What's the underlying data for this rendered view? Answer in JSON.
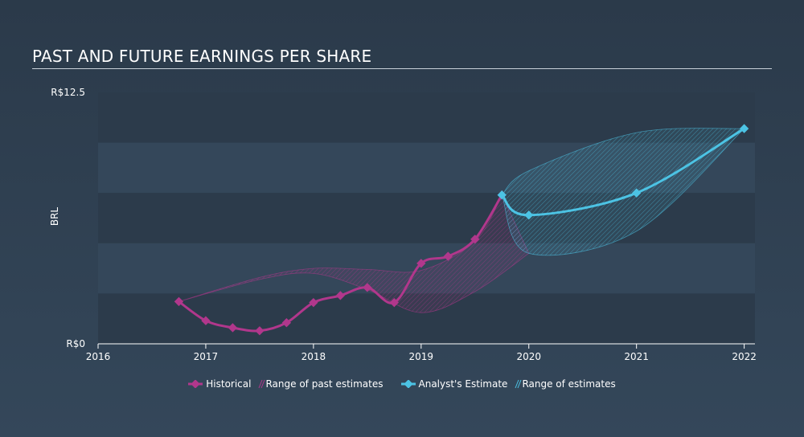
{
  "title": "PAST AND FUTURE EARNINGS PER SHARE",
  "colors": {
    "historical": "#b1378c",
    "estimate": "#4cc3e4",
    "band_fill": "#34475a",
    "band_dark": "#2c3b4b"
  },
  "legend": {
    "historical": "Historical",
    "past_range": "Range of past estimates",
    "analyst": "Analyst's Estimate",
    "future_range": "Range of estimates"
  },
  "chart_data": {
    "type": "line",
    "title": "PAST AND FUTURE EARNINGS PER SHARE",
    "ylabel": "BRL",
    "xlabel": "",
    "ylim": [
      0,
      12.5
    ],
    "xlim": [
      2016,
      2022.1
    ],
    "y_ticks": [
      {
        "value": 12.5,
        "label": "R$12.5"
      },
      {
        "value": 0,
        "label": "R$0"
      }
    ],
    "x_ticks": [
      {
        "value": 2016,
        "label": "2016"
      },
      {
        "value": 2017,
        "label": "2017"
      },
      {
        "value": 2018,
        "label": "2018"
      },
      {
        "value": 2019,
        "label": "2019"
      },
      {
        "value": 2020,
        "label": "2020"
      },
      {
        "value": 2021,
        "label": "2021"
      },
      {
        "value": 2022,
        "label": "2022"
      }
    ],
    "series": [
      {
        "name": "Historical",
        "points": [
          {
            "x": 2016.75,
            "y": 2.1
          },
          {
            "x": 2017.0,
            "y": 1.15
          },
          {
            "x": 2017.25,
            "y": 0.8
          },
          {
            "x": 2017.5,
            "y": 0.65
          },
          {
            "x": 2017.75,
            "y": 1.05
          },
          {
            "x": 2018.0,
            "y": 2.05
          },
          {
            "x": 2018.25,
            "y": 2.4
          },
          {
            "x": 2018.5,
            "y": 2.8
          },
          {
            "x": 2018.75,
            "y": 2.05
          },
          {
            "x": 2019.0,
            "y": 4.0
          },
          {
            "x": 2019.25,
            "y": 4.35
          },
          {
            "x": 2019.5,
            "y": 5.2
          },
          {
            "x": 2019.75,
            "y": 7.4
          }
        ]
      },
      {
        "name": "Analyst's Estimate",
        "points": [
          {
            "x": 2019.75,
            "y": 7.4
          },
          {
            "x": 2020.0,
            "y": 6.4
          },
          {
            "x": 2021.0,
            "y": 7.5
          },
          {
            "x": 2022.0,
            "y": 10.7
          }
        ]
      }
    ],
    "ranges": [
      {
        "name": "Range of past estimates",
        "upper": [
          {
            "x": 2016.75,
            "y": 2.1
          },
          {
            "x": 2017.5,
            "y": 3.3
          },
          {
            "x": 2018.0,
            "y": 3.75
          },
          {
            "x": 2018.5,
            "y": 3.7
          },
          {
            "x": 2019.0,
            "y": 3.65
          },
          {
            "x": 2019.5,
            "y": 5.1
          },
          {
            "x": 2019.75,
            "y": 7.4
          }
        ],
        "lower": [
          {
            "x": 2016.75,
            "y": 2.1
          },
          {
            "x": 2017.5,
            "y": 3.2
          },
          {
            "x": 2018.0,
            "y": 3.5
          },
          {
            "x": 2018.5,
            "y": 2.7
          },
          {
            "x": 2019.0,
            "y": 1.55
          },
          {
            "x": 2019.5,
            "y": 2.6
          },
          {
            "x": 2020.0,
            "y": 4.5
          }
        ]
      },
      {
        "name": "Range of estimates",
        "upper": [
          {
            "x": 2019.75,
            "y": 7.4
          },
          {
            "x": 2020.0,
            "y": 8.6
          },
          {
            "x": 2021.0,
            "y": 10.5
          },
          {
            "x": 2022.0,
            "y": 10.7
          }
        ],
        "lower": [
          {
            "x": 2019.75,
            "y": 7.4
          },
          {
            "x": 2020.0,
            "y": 4.5
          },
          {
            "x": 2021.0,
            "y": 5.6
          },
          {
            "x": 2022.0,
            "y": 10.7
          }
        ]
      }
    ],
    "grid": true,
    "legend_position": "bottom-center"
  }
}
